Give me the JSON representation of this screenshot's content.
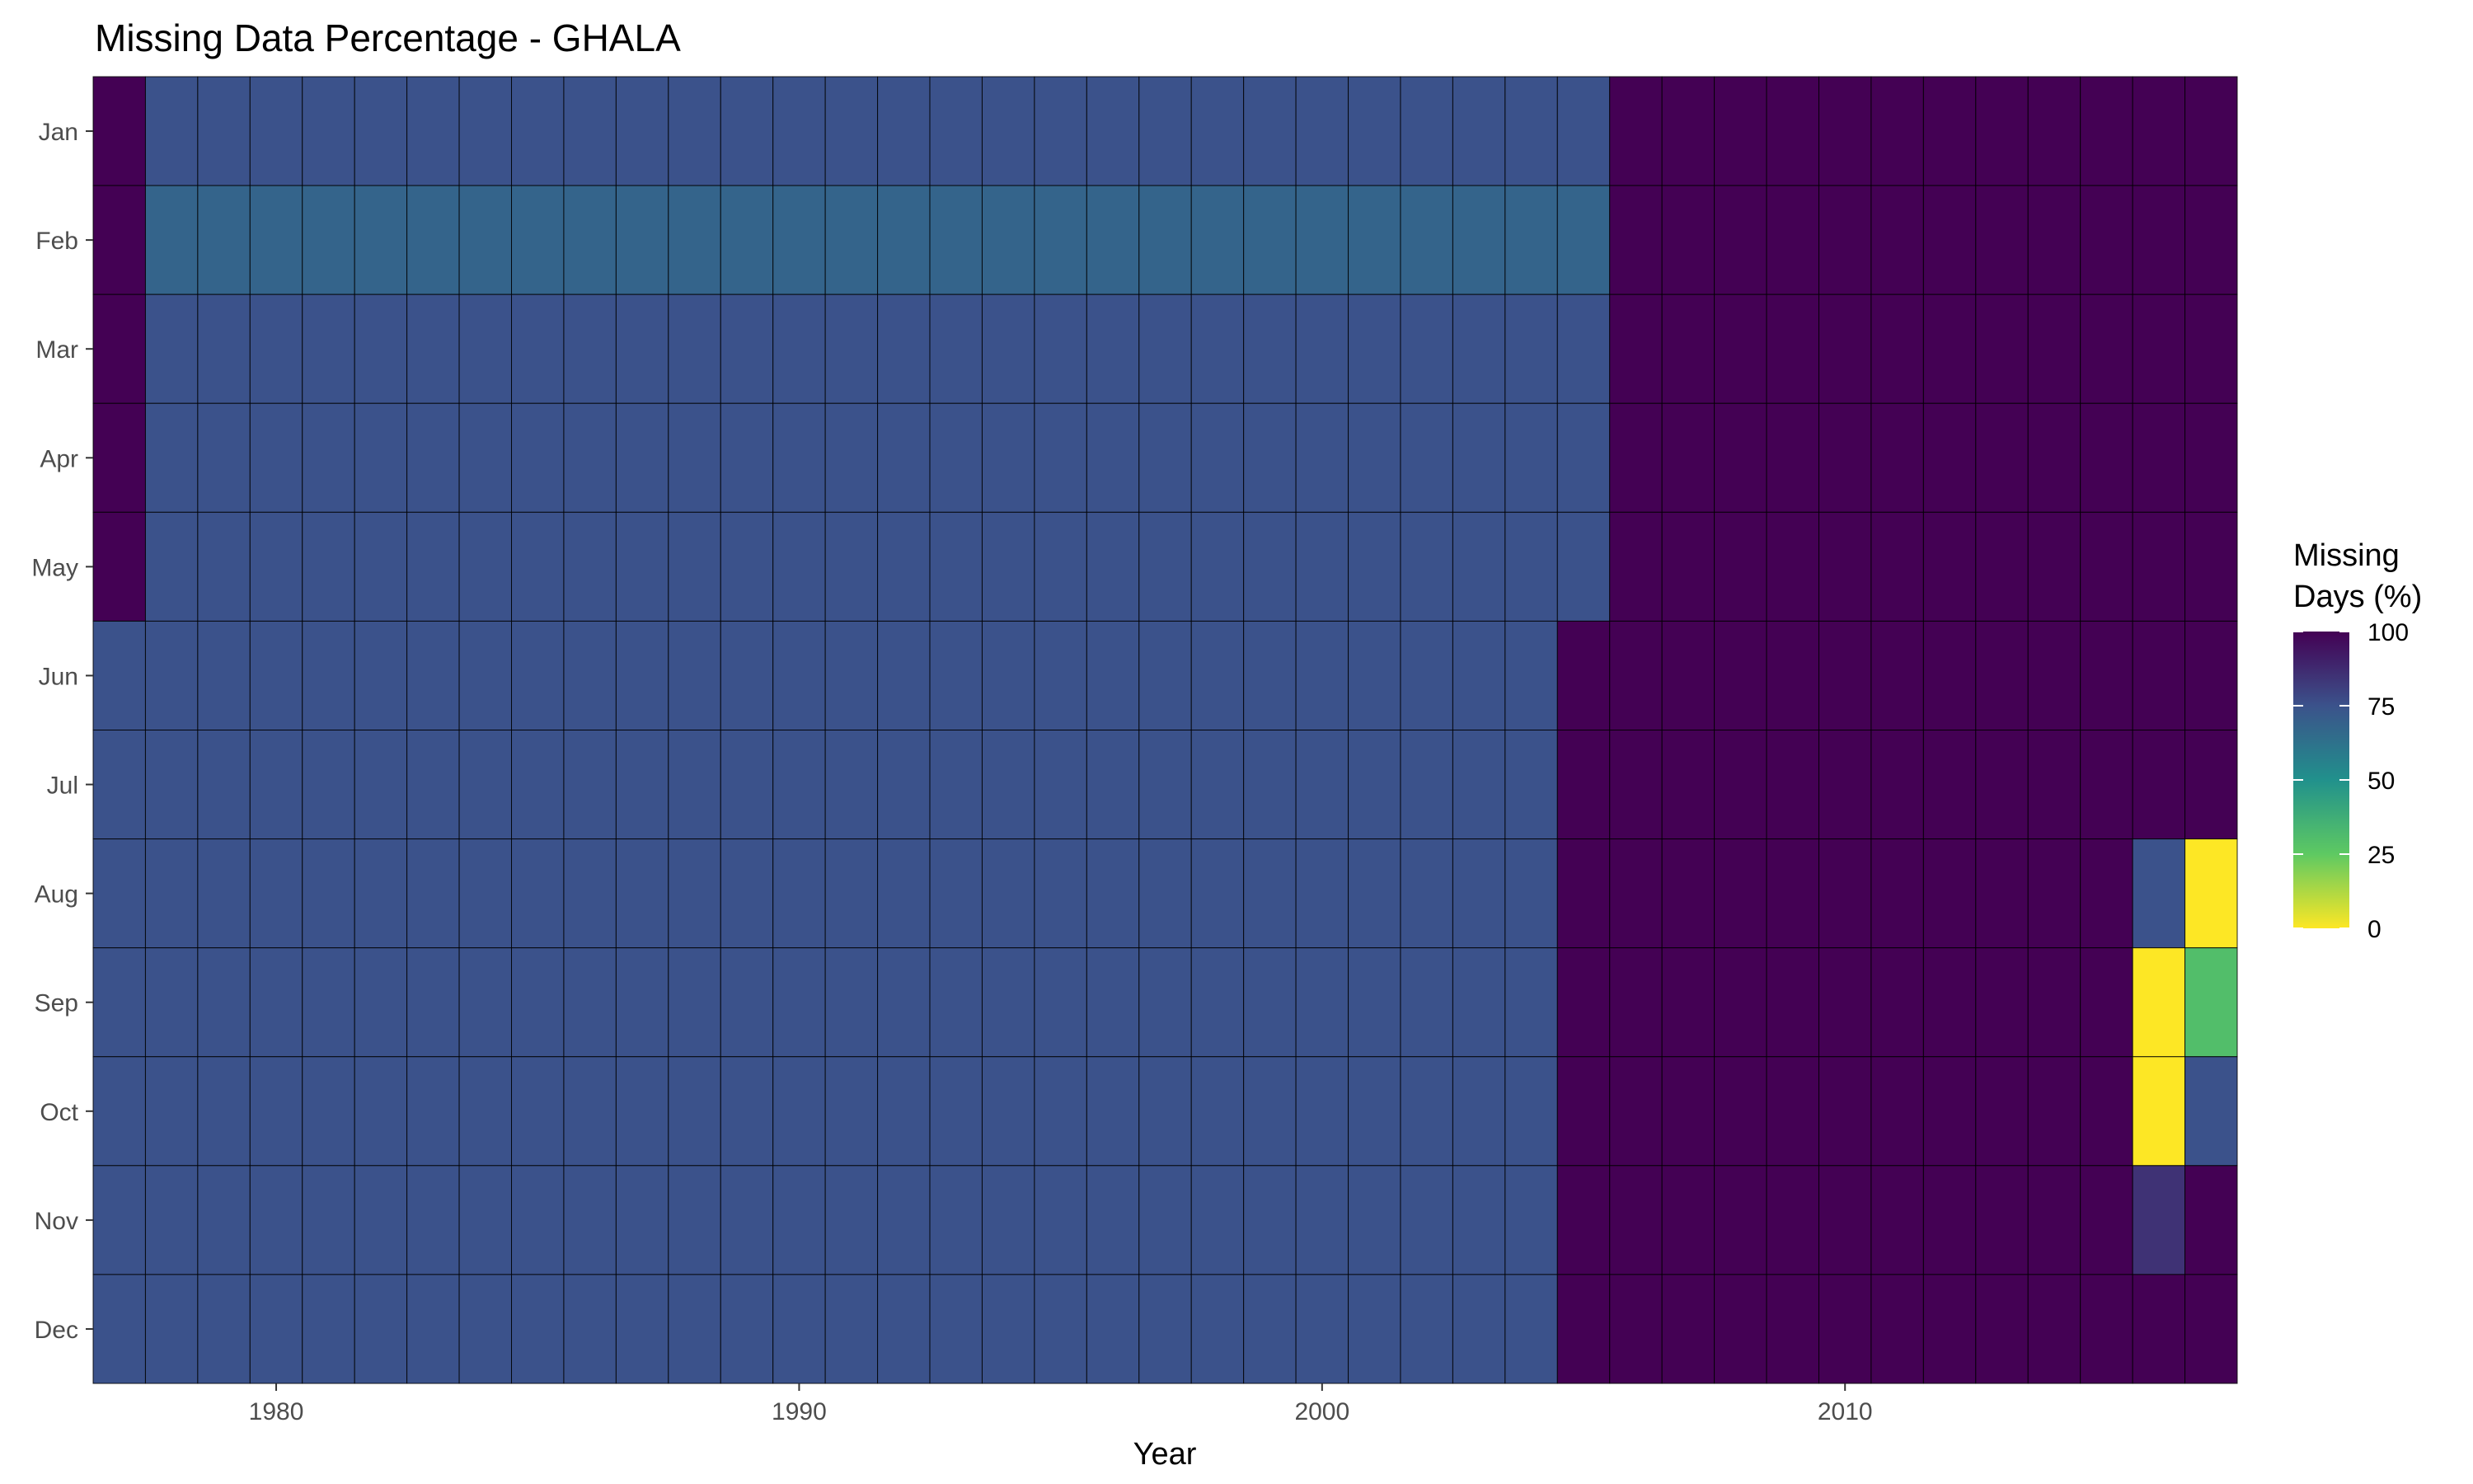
{
  "chart_data": {
    "type": "heatmap",
    "title": "Missing Data Percentage - GHALA",
    "xlabel": "Year",
    "ylabel": "",
    "x_ticks": [
      1980,
      1990,
      2000,
      2010
    ],
    "years": {
      "start": 1977,
      "end": 2017
    },
    "months": [
      "Jan",
      "Feb",
      "Mar",
      "Apr",
      "May",
      "Jun",
      "Jul",
      "Aug",
      "Sep",
      "Oct",
      "Nov",
      "Dec"
    ],
    "legend": {
      "title_lines": [
        "Missing",
        "Days (%)"
      ],
      "ticks": [
        100,
        75,
        50,
        25,
        0
      ],
      "range": [
        0,
        100
      ],
      "colormap": "viridis (reversed: 0 = yellow, 100 = dark purple)"
    },
    "cells_description_rule": {
      "1977_Jan_to_May": 100,
      "1978_to_2005_Jan_to_May": 75,
      "1977_to_2004_Jun_to_Dec": 75,
      "1978_to_2005_Feb": 68,
      "2005_Jun_to_Dec": 100,
      "2006_onward": 100
    },
    "cells": [
      {
        "year": 1977,
        "month": "Jan",
        "value": 100
      },
      {
        "year": 1977,
        "month": "Feb",
        "value": 100
      },
      {
        "year": 1977,
        "month": "Mar",
        "value": 100
      },
      {
        "year": 1977,
        "month": "Apr",
        "value": 100
      },
      {
        "year": 1977,
        "month": "May",
        "value": 100
      },
      {
        "year": 2016,
        "month": "Aug",
        "value": 75
      },
      {
        "year": 2016,
        "month": "Sep",
        "value": 0
      },
      {
        "year": 2016,
        "month": "Oct",
        "value": 0
      },
      {
        "year": 2016,
        "month": "Nov",
        "value": 85
      },
      {
        "year": 2016,
        "month": "Dec",
        "value": 100
      },
      {
        "year": 2017,
        "month": "Aug",
        "value": 0
      },
      {
        "year": 2017,
        "month": "Sep",
        "value": 30
      },
      {
        "year": 2017,
        "month": "Oct",
        "value": 75
      },
      {
        "year": 2017,
        "month": "Nov",
        "value": 100
      },
      {
        "year": 2017,
        "month": "Dec",
        "value": 100
      }
    ]
  },
  "colors": {
    "background": "#ffffff",
    "cell_border": "#000000",
    "tick_text": "#4d4d4d"
  }
}
